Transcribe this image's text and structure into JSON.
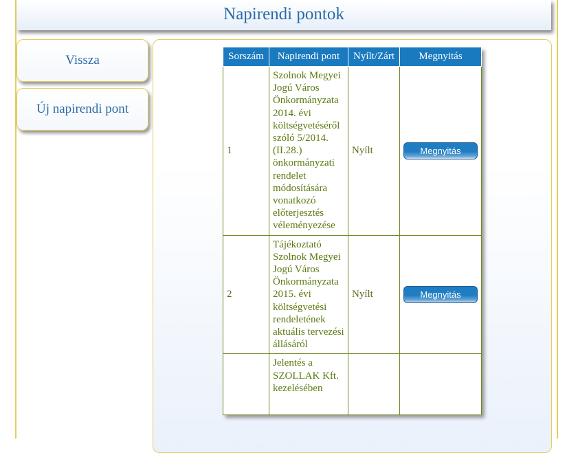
{
  "header": {
    "title": "Napirendi pontok"
  },
  "nav": {
    "back": "Vissza",
    "new_item": "Új napirendi pont"
  },
  "table": {
    "headers": [
      "Sorszám",
      "Napirendi pont",
      "Nyílt/Zárt",
      "Megnyitás"
    ],
    "rows": [
      {
        "num": "1",
        "title": "Szolnok Megyei Jogú Város Önkormányzata 2014. évi költségvetéséről szóló 5/2014. (II.28.) önkormányzati rendelet módosítására vonatkozó előterjesztés véleményezése",
        "status": "Nyílt",
        "action": "Megnyitás"
      },
      {
        "num": "2",
        "title": "Tájékoztató Szolnok Megyei Jogú Város Önkormányzata 2015. évi költségvetési rendeletének aktuális tervezési állásáról",
        "status": "Nyílt",
        "action": "Megnyitás"
      },
      {
        "num": "",
        "title": "Jelentés a SZOLLAK Kft. kezelésében",
        "status": "",
        "action": ""
      }
    ]
  },
  "colors": {
    "accent": "#1a7abf",
    "border": "#e2cf5a",
    "text_green": "#5b7a12"
  }
}
